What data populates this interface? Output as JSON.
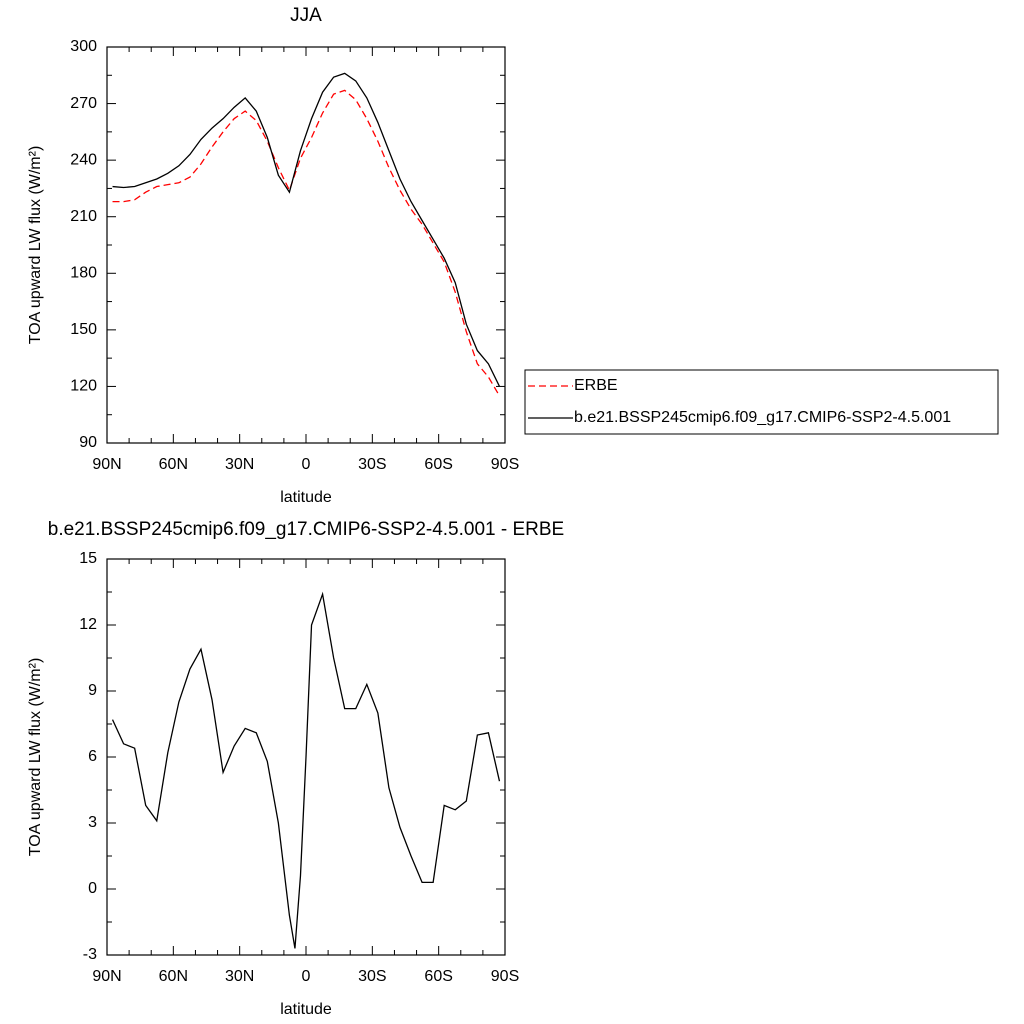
{
  "chart_data": [
    {
      "type": "line",
      "title": "JJA",
      "x_label": "latitude",
      "y_label": "TOA upward LW flux (W/m²)",
      "x": [
        87.5,
        82.5,
        77.5,
        72.5,
        67.5,
        62.5,
        57.5,
        52.5,
        47.5,
        42.5,
        37.5,
        32.5,
        27.5,
        22.5,
        17.5,
        12.5,
        7.5,
        2.5,
        -2.5,
        -7.5,
        -12.5,
        -17.5,
        -22.5,
        -27.5,
        -32.5,
        -37.5,
        -42.5,
        -47.5,
        -52.5,
        -57.5,
        -62.5,
        -67.5,
        -72.5,
        -77.5,
        -82.5,
        -87.5
      ],
      "series": [
        {
          "name": "ERBE",
          "color": "#ff0000",
          "line_style": "dashed",
          "values": [
            218,
            218,
            219,
            223,
            226,
            227,
            228,
            231,
            238,
            247,
            255,
            262,
            266,
            261,
            250,
            236,
            224,
            241,
            252,
            265,
            275,
            277,
            272,
            262,
            250,
            236,
            224,
            214,
            206,
            196,
            186,
            170,
            149,
            132,
            125,
            115
          ]
        },
        {
          "name": "b.e21.BSSP245cmip6.f09_g17.CMIP6-SSP2-4.5.001",
          "color": "#000000",
          "line_style": "solid",
          "values": [
            226,
            225.5,
            226,
            228,
            230,
            233,
            237,
            243,
            251,
            257,
            262,
            268,
            273,
            266,
            252,
            232,
            223,
            245,
            262,
            276,
            284,
            286,
            282,
            273,
            260,
            245,
            230,
            218,
            208,
            198,
            188,
            175,
            153,
            139,
            132,
            120
          ]
        }
      ],
      "xlim": [
        90,
        -90
      ],
      "xticks": [
        {
          "value": 90,
          "label": "90N"
        },
        {
          "value": 60,
          "label": "60N"
        },
        {
          "value": 30,
          "label": "30N"
        },
        0,
        {
          "value": -30,
          "label": "30S"
        },
        {
          "value": -60,
          "label": "60S"
        },
        {
          "value": -90,
          "label": "90S"
        }
      ],
      "ylim": [
        90,
        300
      ],
      "yticks": [
        90,
        120,
        150,
        180,
        210,
        240,
        270,
        300
      ],
      "legend": "right"
    },
    {
      "type": "line",
      "title": "b.e21.BSSP245cmip6.f09_g17.CMIP6-SSP2-4.5.001 - ERBE",
      "x_label": "latitude",
      "y_label": "TOA upward LW flux (W/m²)",
      "x": [
        87.5,
        82.5,
        77.5,
        72.5,
        67.5,
        62.5,
        57.5,
        52.5,
        47.5,
        42.5,
        37.5,
        32.5,
        27.5,
        22.5,
        17.5,
        12.5,
        7.5,
        5,
        2.5,
        0,
        -2.5,
        -7.5,
        -12.5,
        -17.5,
        -22.5,
        -27.5,
        -32.5,
        -37.5,
        -42.5,
        -47.5,
        -52.5,
        -57.5,
        -62.5,
        -67.5,
        -72.5,
        -77.5,
        -82.5,
        -87.5
      ],
      "series": [
        {
          "color": "#000000",
          "line_style": "solid",
          "values": [
            7.7,
            6.6,
            6.4,
            3.8,
            3.1,
            6.2,
            8.5,
            10.0,
            10.9,
            8.6,
            5.3,
            6.5,
            7.3,
            7.1,
            5.8,
            3.0,
            -1.2,
            -2.7,
            0.6,
            6.0,
            12.0,
            13.4,
            10.5,
            8.2,
            8.2,
            9.3,
            8.0,
            4.6,
            2.8,
            1.5,
            0.3,
            0.3,
            3.8,
            3.6,
            4.0,
            7.0,
            7.1,
            4.9
          ]
        }
      ],
      "xlim": [
        90,
        -90
      ],
      "xticks": [
        {
          "value": 90,
          "label": "90N"
        },
        {
          "value": 60,
          "label": "60N"
        },
        {
          "value": 30,
          "label": "30N"
        },
        0,
        {
          "value": -30,
          "label": "30S"
        },
        {
          "value": -60,
          "label": "60S"
        },
        {
          "value": -90,
          "label": "90S"
        }
      ],
      "ylim": [
        -3,
        15
      ],
      "yticks": [
        -3,
        0,
        3,
        6,
        9,
        12,
        15
      ]
    }
  ]
}
